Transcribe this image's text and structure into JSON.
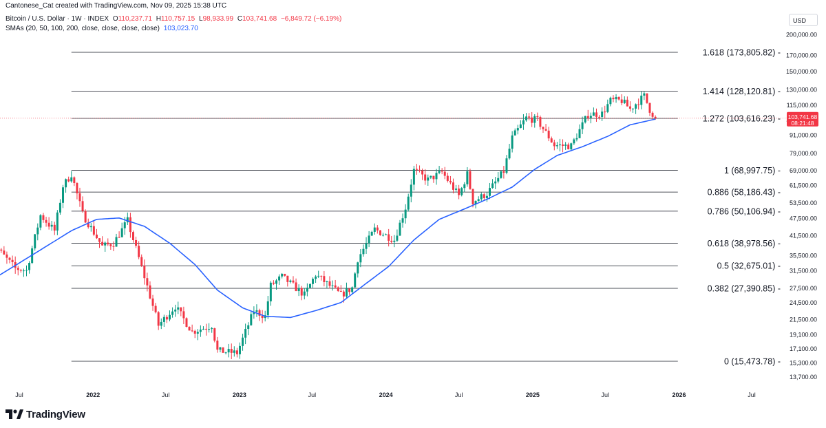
{
  "header": {
    "credit": "Cantonese_Cat created with TradingView.com, Nov 09, 2025 15:38 UTC",
    "symbol": "Bitcoin / U.S. Dollar · 1W · INDEX",
    "ohlc": {
      "open_label": "O",
      "open": "110,237.71",
      "high_label": "H",
      "high": "110,757.15",
      "low_label": "L",
      "low": "98,933.99",
      "close_label": "C",
      "close": "103,741.68",
      "change": "−6,849.72 (−6.19%)"
    },
    "sma_label": "SMAs (20, 50, 100, 200, close, close, close, close)",
    "sma_value": "103,023.70"
  },
  "currency": "USD",
  "brand": {
    "name": "TradingView",
    "logo_icon": "tradingview-logo-icon"
  },
  "colors": {
    "up": "#089981",
    "down": "#f23645",
    "sma": "#2962ff",
    "fib": "#131722",
    "grid_text": "#131722"
  },
  "chart_data": {
    "type": "candlestick",
    "scale": "log",
    "timeframe": "1W",
    "ylim": [
      12500,
      230000
    ],
    "y_ticks": [
      "200,000.00",
      "170,000.00",
      "150,000.00",
      "130,000.00",
      "115,000.00",
      "103,000.00",
      "91,000.00",
      "79,000.00",
      "69,000.00",
      "61,500.00",
      "53,500.00",
      "47,500.00",
      "41,500.00",
      "35,500.00",
      "31,500.00",
      "27,500.00",
      "24,500.00",
      "21,500.00",
      "19,100.00",
      "17,100.00",
      "15,300.00",
      "13,700.00"
    ],
    "x_ticks": [
      {
        "label": "Jul",
        "date": "2021-07-01"
      },
      {
        "label": "2022",
        "date": "2022-01-01"
      },
      {
        "label": "Jul",
        "date": "2022-07-01"
      },
      {
        "label": "2023",
        "date": "2023-01-01"
      },
      {
        "label": "Jul",
        "date": "2023-07-01"
      },
      {
        "label": "2024",
        "date": "2024-01-01"
      },
      {
        "label": "Jul",
        "date": "2024-07-01"
      },
      {
        "label": "2025",
        "date": "2025-01-01"
      },
      {
        "label": "Jul",
        "date": "2025-07-01"
      },
      {
        "label": "2026",
        "date": "2026-01-01"
      },
      {
        "label": "Jul",
        "date": "2026-07-01"
      }
    ],
    "fib_levels": [
      {
        "ratio": "1.618",
        "price": 173805.82,
        "label": "1.618 (173,805.82)"
      },
      {
        "ratio": "1.414",
        "price": 128120.81,
        "label": "1.414 (128,120.81)"
      },
      {
        "ratio": "1.272",
        "price": 103616.23,
        "label": "1.272 (103,616.23)"
      },
      {
        "ratio": "1",
        "price": 68997.75,
        "label": "1 (68,997.75)"
      },
      {
        "ratio": "0.886",
        "price": 58186.43,
        "label": "0.886 (58,186.43)"
      },
      {
        "ratio": "0.786",
        "price": 50106.94,
        "label": "0.786 (50,106.94)"
      },
      {
        "ratio": "0.618",
        "price": 38978.56,
        "label": "0.618 (38,978.56)"
      },
      {
        "ratio": "0.5",
        "price": 32675.01,
        "label": "0.5 (32,675.01)"
      },
      {
        "ratio": "0.382",
        "price": 27390.85,
        "label": "0.382 (27,390.85)"
      },
      {
        "ratio": "0",
        "price": 15473.78,
        "label": "0 (15,473.78)"
      }
    ],
    "fib_start_date": "2021-11-08",
    "fib_end_date": "2025-12-29",
    "last_price": {
      "value": 103741.68,
      "label": "103,741.68",
      "countdown": "08:21:48"
    },
    "price_anchors": [
      {
        "date": "2021-04-19",
        "close": 49000
      },
      {
        "date": "2021-05-10",
        "close": 37000
      },
      {
        "date": "2021-06-21",
        "close": 32000
      },
      {
        "date": "2021-07-19",
        "close": 31500
      },
      {
        "date": "2021-08-23",
        "close": 48500
      },
      {
        "date": "2021-09-27",
        "close": 43000
      },
      {
        "date": "2021-10-18",
        "close": 61000
      },
      {
        "date": "2021-11-08",
        "close": 67000
      },
      {
        "date": "2021-12-06",
        "close": 49000
      },
      {
        "date": "2022-01-24",
        "close": 38000
      },
      {
        "date": "2022-02-21",
        "close": 39000
      },
      {
        "date": "2022-03-28",
        "close": 46500
      },
      {
        "date": "2022-05-09",
        "close": 30000
      },
      {
        "date": "2022-06-13",
        "close": 20500
      },
      {
        "date": "2022-07-25",
        "close": 23800
      },
      {
        "date": "2022-09-05",
        "close": 19500
      },
      {
        "date": "2022-10-24",
        "close": 20500
      },
      {
        "date": "2022-11-07",
        "close": 16800
      },
      {
        "date": "2022-12-26",
        "close": 16500
      },
      {
        "date": "2023-02-06",
        "close": 23000
      },
      {
        "date": "2023-03-06",
        "close": 22000
      },
      {
        "date": "2023-03-20",
        "close": 28000
      },
      {
        "date": "2023-04-17",
        "close": 30000
      },
      {
        "date": "2023-06-12",
        "close": 26000
      },
      {
        "date": "2023-07-10",
        "close": 30500
      },
      {
        "date": "2023-09-11",
        "close": 26000
      },
      {
        "date": "2023-10-09",
        "close": 27500
      },
      {
        "date": "2023-10-23",
        "close": 34500
      },
      {
        "date": "2023-12-04",
        "close": 43500
      },
      {
        "date": "2024-01-22",
        "close": 40000
      },
      {
        "date": "2024-02-19",
        "close": 51500
      },
      {
        "date": "2024-03-11",
        "close": 69000
      },
      {
        "date": "2024-04-15",
        "close": 64000
      },
      {
        "date": "2024-05-20",
        "close": 68000
      },
      {
        "date": "2024-07-01",
        "close": 56500
      },
      {
        "date": "2024-07-22",
        "close": 67000
      },
      {
        "date": "2024-08-05",
        "close": 54000
      },
      {
        "date": "2024-09-09",
        "close": 57500
      },
      {
        "date": "2024-10-21",
        "close": 68500
      },
      {
        "date": "2024-11-11",
        "close": 89000
      },
      {
        "date": "2024-12-16",
        "close": 104000
      },
      {
        "date": "2025-01-13",
        "close": 102000
      },
      {
        "date": "2025-02-24",
        "close": 84000
      },
      {
        "date": "2025-04-07",
        "close": 83500
      },
      {
        "date": "2025-05-19",
        "close": 107000
      },
      {
        "date": "2025-06-23",
        "close": 107500
      },
      {
        "date": "2025-07-14",
        "close": 119000
      },
      {
        "date": "2025-08-11",
        "close": 119000
      },
      {
        "date": "2025-09-01",
        "close": 111500
      },
      {
        "date": "2025-10-06",
        "close": 123500
      },
      {
        "date": "2025-10-20",
        "close": 111000
      },
      {
        "date": "2025-11-03",
        "close": 103742
      }
    ],
    "sma_anchors": [
      {
        "date": "2021-04-19",
        "value": 29000
      },
      {
        "date": "2021-08-23",
        "value": 37000
      },
      {
        "date": "2021-11-08",
        "value": 43000
      },
      {
        "date": "2022-01-10",
        "value": 47000
      },
      {
        "date": "2022-03-07",
        "value": 47500
      },
      {
        "date": "2022-05-09",
        "value": 44500
      },
      {
        "date": "2022-07-11",
        "value": 39000
      },
      {
        "date": "2022-09-12",
        "value": 33000
      },
      {
        "date": "2022-11-07",
        "value": 27000
      },
      {
        "date": "2023-01-09",
        "value": 23500
      },
      {
        "date": "2023-03-06",
        "value": 22000
      },
      {
        "date": "2023-05-08",
        "value": 21800
      },
      {
        "date": "2023-07-10",
        "value": 23000
      },
      {
        "date": "2023-09-11",
        "value": 24500
      },
      {
        "date": "2023-11-06",
        "value": 28000
      },
      {
        "date": "2024-01-08",
        "value": 32500
      },
      {
        "date": "2024-03-11",
        "value": 40000
      },
      {
        "date": "2024-05-13",
        "value": 47000
      },
      {
        "date": "2024-07-15",
        "value": 51000
      },
      {
        "date": "2024-09-09",
        "value": 55000
      },
      {
        "date": "2024-11-11",
        "value": 60500
      },
      {
        "date": "2025-01-06",
        "value": 69500
      },
      {
        "date": "2025-03-03",
        "value": 77500
      },
      {
        "date": "2025-05-05",
        "value": 83000
      },
      {
        "date": "2025-07-07",
        "value": 90000
      },
      {
        "date": "2025-09-01",
        "value": 98500
      },
      {
        "date": "2025-11-03",
        "value": 103024
      }
    ]
  }
}
